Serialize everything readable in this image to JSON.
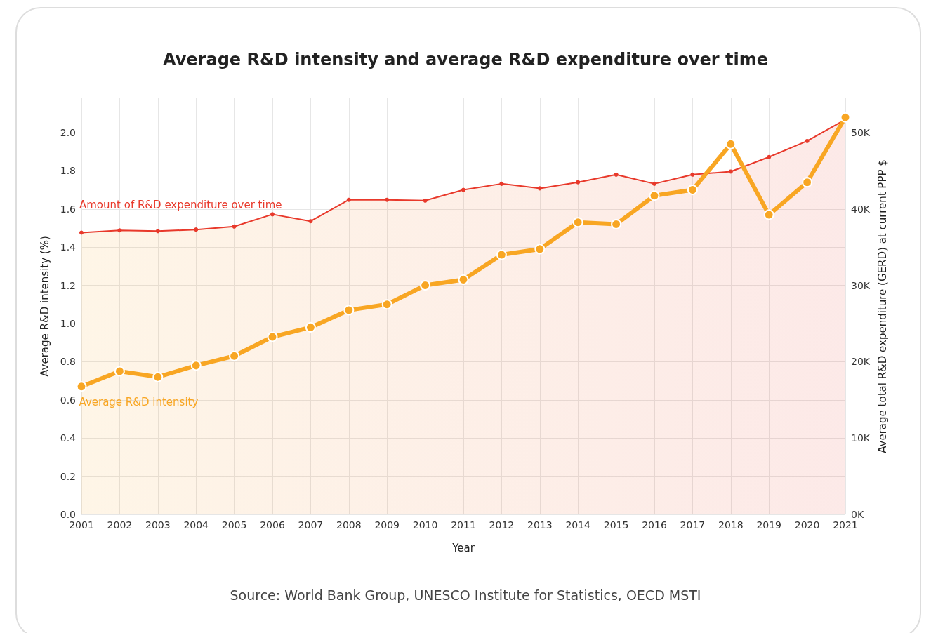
{
  "chart_data": {
    "type": "line",
    "title": "Average R&D intensity and average R&D expenditure over time",
    "xlabel": "Year",
    "ylabel": "Average R&D intensity (%)",
    "y2label": "Average total R&D expenditure (GERD) at current PPP $",
    "categories": [
      "2001",
      "2002",
      "2003",
      "2004",
      "2005",
      "2006",
      "2007",
      "2008",
      "2009",
      "2010",
      "2011",
      "2012",
      "2013",
      "2014",
      "2015",
      "2016",
      "2017",
      "2018",
      "2019",
      "2020",
      "2021"
    ],
    "series": [
      {
        "name": "Amount of R&D expenditure over time",
        "type": "area",
        "axis": "y2",
        "color": "#e8392b",
        "values": [
          36.9,
          37.2,
          37.1,
          37.3,
          37.7,
          39.3,
          38.4,
          41.2,
          41.2,
          41.1,
          42.5,
          43.3,
          42.7,
          43.5,
          44.5,
          43.3,
          44.5,
          44.9,
          46.8,
          48.9,
          51.7
        ]
      },
      {
        "name": "Average R&D intensity",
        "color": "#f8a623",
        "values": [
          0.67,
          0.75,
          0.72,
          0.78,
          0.83,
          0.93,
          0.98,
          1.07,
          1.1,
          1.2,
          1.23,
          1.36,
          1.39,
          1.53,
          1.52,
          1.67,
          1.7,
          1.94,
          1.57,
          1.74,
          2.08
        ]
      }
    ],
    "ylim": [
      0,
      2.18
    ],
    "yticks": [
      {
        "value": 0,
        "label": "0.0"
      },
      0.2,
      0.4,
      0.6,
      0.8,
      {
        "value": 1,
        "label": "1.0"
      },
      1.2,
      1.4,
      1.6,
      1.8,
      {
        "value": 2,
        "label": "2.0"
      }
    ],
    "y2lim": [
      0,
      54.5
    ],
    "y2ticks": [
      {
        "value": 0,
        "label": "0K"
      },
      {
        "value": 10,
        "label": "10K"
      },
      {
        "value": 20,
        "label": "20K"
      },
      {
        "value": 30,
        "label": "30K"
      },
      {
        "value": 40,
        "label": "40K"
      },
      {
        "value": 50,
        "label": "50K"
      }
    ],
    "grid": true,
    "legend": false,
    "marker": "circle",
    "line_style": "solid",
    "annotations": [
      "Source: World Bank Group, UNESCO Institute for Statistics, OECD MSTI"
    ]
  }
}
